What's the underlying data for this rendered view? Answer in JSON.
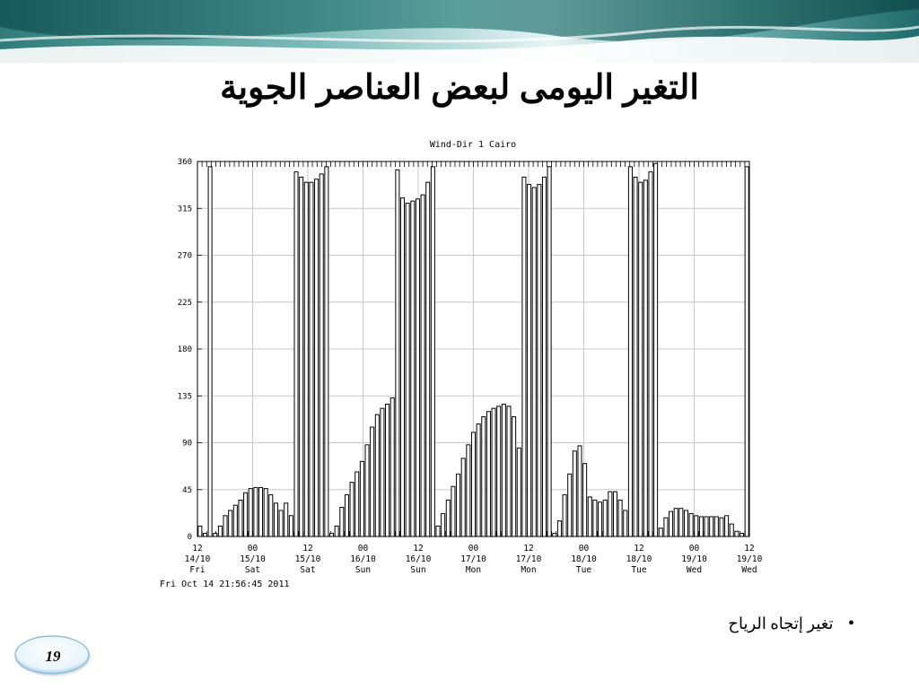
{
  "slide": {
    "title": "التغير اليومى لبعض العناصر الجوية",
    "bullet": "تغير إتجاه الرياح",
    "page_number": "19"
  },
  "colors": {
    "banner_dark": "#1f6b6b",
    "banner_light": "#bfe3e3",
    "grid": "#c8c8c8",
    "bars": "#000000"
  },
  "chart_data": {
    "type": "bar",
    "title": "Wind-Dir 1 Cairo",
    "timestamp": "Fri Oct 14 21:56:45 2011",
    "ylim": [
      0,
      360
    ],
    "yticks": [
      "0",
      "45",
      "90",
      "135",
      "180",
      "225",
      "270",
      "315",
      "360"
    ],
    "xlim_hours": [
      0,
      120
    ],
    "xticks": [
      {
        "hour": "12",
        "date": "14/10",
        "day": "Fri"
      },
      {
        "hour": "00",
        "date": "15/10",
        "day": "Sat"
      },
      {
        "hour": "12",
        "date": "15/10",
        "day": "Sat"
      },
      {
        "hour": "00",
        "date": "16/10",
        "day": "Sun"
      },
      {
        "hour": "12",
        "date": "16/10",
        "day": "Sun"
      },
      {
        "hour": "00",
        "date": "17/10",
        "day": "Mon"
      },
      {
        "hour": "12",
        "date": "17/10",
        "day": "Mon"
      },
      {
        "hour": "00",
        "date": "18/10",
        "day": "Tue"
      },
      {
        "hour": "12",
        "date": "18/10",
        "day": "Tue"
      },
      {
        "hour": "00",
        "date": "19/10",
        "day": "Wed"
      },
      {
        "hour": "12",
        "date": "19/10",
        "day": "Wed"
      }
    ],
    "values": [
      10,
      3,
      355,
      3,
      10,
      20,
      25,
      30,
      35,
      42,
      46,
      47,
      47,
      46,
      40,
      32,
      25,
      32,
      20,
      350,
      345,
      340,
      340,
      343,
      348,
      355,
      3,
      10,
      28,
      40,
      52,
      62,
      72,
      88,
      105,
      117,
      123,
      127,
      133,
      352,
      325,
      320,
      322,
      324,
      328,
      340,
      355,
      10,
      22,
      35,
      48,
      60,
      75,
      88,
      100,
      108,
      115,
      120,
      123,
      125,
      127,
      125,
      115,
      85,
      345,
      338,
      335,
      338,
      345,
      355,
      3,
      15,
      40,
      60,
      82,
      87,
      70,
      38,
      35,
      33,
      35,
      43,
      43,
      35,
      25,
      355,
      345,
      340,
      342,
      350,
      358,
      8,
      18,
      24,
      27,
      27,
      25,
      22,
      20,
      19,
      19,
      19,
      19,
      18,
      20,
      12,
      5,
      3,
      355
    ]
  }
}
